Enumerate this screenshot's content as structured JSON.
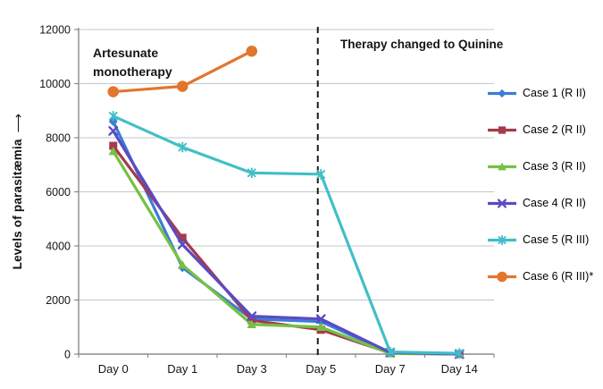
{
  "chart_data": {
    "type": "line",
    "title": "",
    "ylabel": "Levels of parasitæmia",
    "ylabel_arrow": "⟶",
    "xlabel": "",
    "categories": [
      "Day 0",
      "Day 1",
      "Day 3",
      "Day 5",
      "Day 7",
      "Day 14"
    ],
    "y_ticks": [
      0,
      2000,
      4000,
      6000,
      8000,
      10000,
      12000
    ],
    "ylim": [
      0,
      12000
    ],
    "grid": "horizontal-only",
    "legend_position": "right-outside",
    "divider": {
      "type": "vertical-dashed-line",
      "at_category": "Day 5",
      "color": "#1a1a1a"
    },
    "annotations": [
      {
        "id": "artesunate-monotherapy",
        "text": "Artesunate monotherapy",
        "region": "left-of-divider"
      },
      {
        "id": "therapy-changed",
        "text": "Therapy changed to Quinine",
        "region": "right-of-divider"
      }
    ],
    "series": [
      {
        "name": "Case 1 (R II)",
        "color": "#3B7CD6",
        "marker": "diamond",
        "values": [
          8600,
          3200,
          1300,
          1200,
          50,
          0
        ]
      },
      {
        "name": "Case 2 (R II)",
        "color": "#A63A4C",
        "marker": "square",
        "values": [
          7700,
          4300,
          1250,
          900,
          40,
          0
        ]
      },
      {
        "name": "Case 3 (R II)",
        "color": "#76C043",
        "marker": "triangle",
        "values": [
          7500,
          3300,
          1100,
          1000,
          20,
          0
        ]
      },
      {
        "name": "Case 4 (R II)",
        "color": "#5A4BC2",
        "marker": "x",
        "values": [
          8250,
          4050,
          1400,
          1300,
          60,
          0
        ]
      },
      {
        "name": "Case 5 (R III)",
        "color": "#41BFC7",
        "marker": "asterisk",
        "values": [
          8800,
          7650,
          6700,
          6650,
          80,
          30
        ]
      },
      {
        "name": "Case 6 (R III)*",
        "color": "#E2762D",
        "marker": "circle",
        "values": [
          9700,
          9900,
          11200,
          null,
          null,
          null
        ]
      }
    ],
    "axis_colors": {
      "gridline": "#C3C7CB",
      "axis": "#8C8C8C"
    }
  }
}
